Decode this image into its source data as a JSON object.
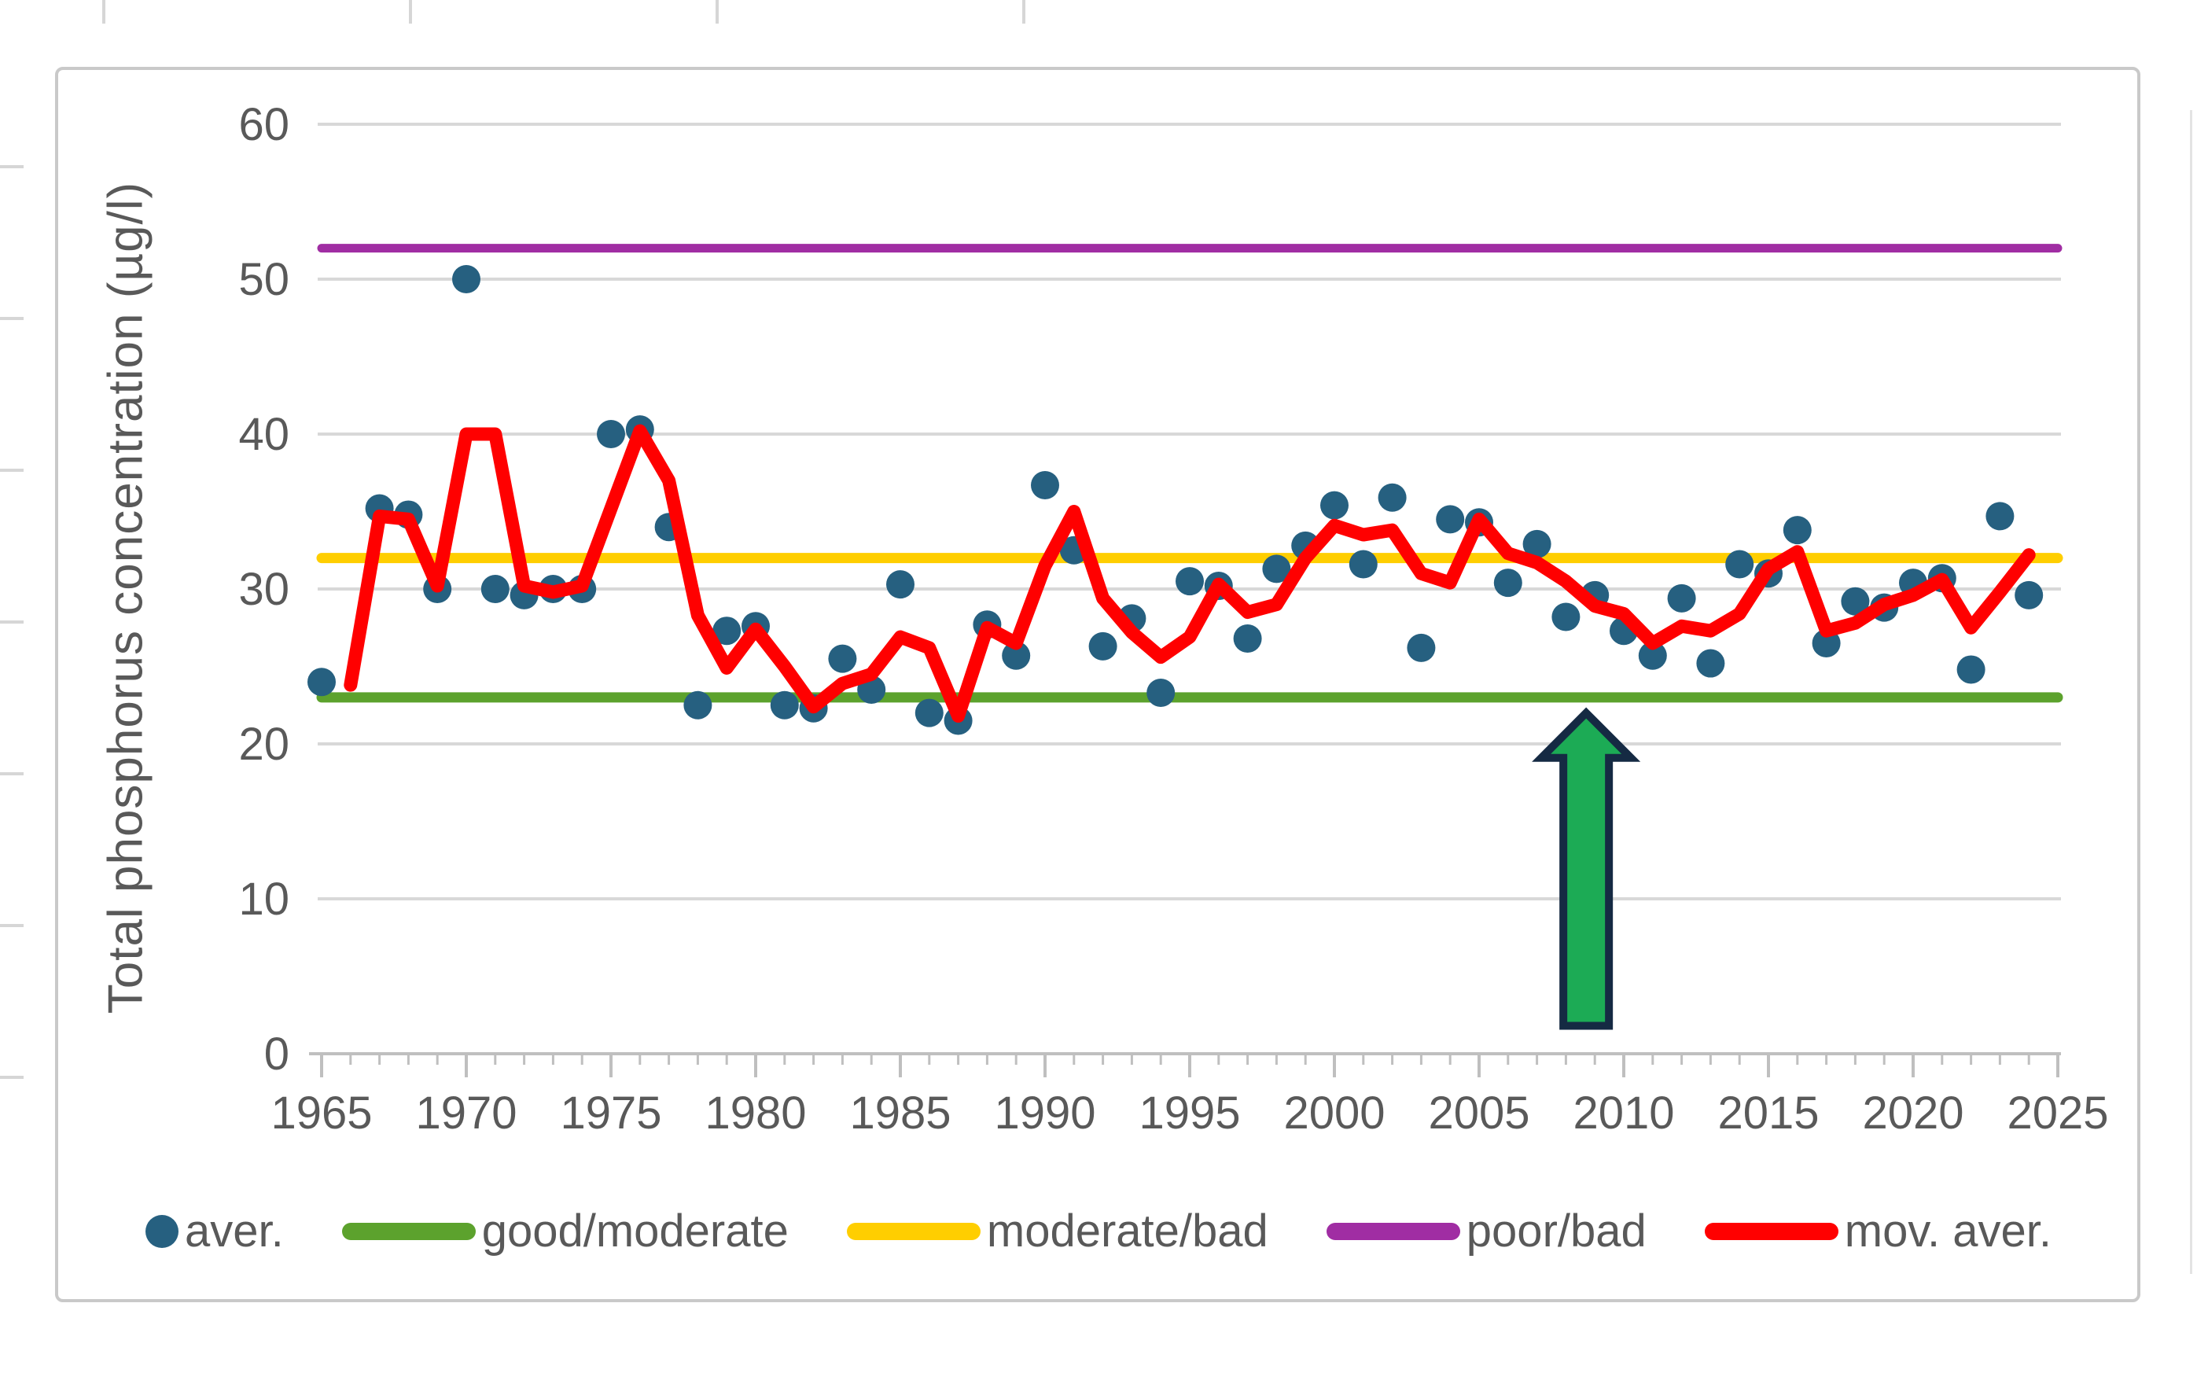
{
  "chart_data": {
    "type": "scatter",
    "title": "",
    "xlabel": "",
    "ylabel": "Total phosphorus concentration (µg/l)",
    "xlim": [
      1965,
      2025
    ],
    "ylim": [
      0,
      60
    ],
    "x_ticks": [
      1965,
      1970,
      1975,
      1980,
      1985,
      1990,
      1995,
      2000,
      2005,
      2010,
      2015,
      2020,
      2025
    ],
    "y_ticks": [
      0,
      10,
      20,
      30,
      40,
      50,
      60
    ],
    "grid": "horizontal",
    "legend_position": "bottom",
    "colors": {
      "gridline": "#d8d8d8",
      "axis": "#bfbfbf",
      "tick_text": "#595959"
    },
    "series": [
      {
        "name": "aver.",
        "type": "scatter",
        "color": "#266080",
        "points": [
          [
            1965,
            24
          ],
          [
            1967,
            35.2
          ],
          [
            1968,
            34.8
          ],
          [
            1969,
            30
          ],
          [
            1970,
            50
          ],
          [
            1971,
            30
          ],
          [
            1972,
            29.6
          ],
          [
            1973,
            30
          ],
          [
            1974,
            30
          ],
          [
            1975,
            40
          ],
          [
            1976,
            40.3
          ],
          [
            1977,
            34
          ],
          [
            1978,
            22.5
          ],
          [
            1979,
            27.3
          ],
          [
            1980,
            27.6
          ],
          [
            1981,
            22.5
          ],
          [
            1982,
            22.3
          ],
          [
            1983,
            25.5
          ],
          [
            1984,
            23.5
          ],
          [
            1985,
            30.3
          ],
          [
            1986,
            22
          ],
          [
            1987,
            21.5
          ],
          [
            1988,
            27.7
          ],
          [
            1989,
            25.7
          ],
          [
            1990,
            36.7
          ],
          [
            1991,
            32.5
          ],
          [
            1992,
            26.3
          ],
          [
            1993,
            28.1
          ],
          [
            1994,
            23.3
          ],
          [
            1995,
            30.5
          ],
          [
            1996,
            30.2
          ],
          [
            1997,
            26.8
          ],
          [
            1998,
            31.3
          ],
          [
            1999,
            32.8
          ],
          [
            2000,
            35.4
          ],
          [
            2001,
            31.6
          ],
          [
            2002,
            35.9
          ],
          [
            2003,
            26.2
          ],
          [
            2004,
            34.5
          ],
          [
            2005,
            34.3
          ],
          [
            2006,
            30.4
          ],
          [
            2007,
            32.9
          ],
          [
            2008,
            28.2
          ],
          [
            2009,
            29.6
          ],
          [
            2010,
            27.3
          ],
          [
            2011,
            25.7
          ],
          [
            2012,
            29.4
          ],
          [
            2013,
            25.2
          ],
          [
            2014,
            31.6
          ],
          [
            2015,
            31
          ],
          [
            2016,
            33.8
          ],
          [
            2017,
            26.5
          ],
          [
            2018,
            29.2
          ],
          [
            2019,
            28.8
          ],
          [
            2020,
            30.4
          ],
          [
            2021,
            30.7
          ],
          [
            2022,
            24.8
          ],
          [
            2023,
            34.7
          ],
          [
            2024,
            29.6
          ]
        ]
      },
      {
        "name": "good/moderate",
        "type": "hline",
        "color": "#5CA22D",
        "value": 23
      },
      {
        "name": "moderate/bad",
        "type": "hline",
        "color": "#FFCE00",
        "value": 32
      },
      {
        "name": "poor/bad",
        "type": "hline",
        "color": "#A02DA3",
        "value": 52
      },
      {
        "name": "mov. aver.",
        "type": "line",
        "color": "#FF0000",
        "points": [
          [
            1966,
            23.8
          ],
          [
            1967,
            34.7
          ],
          [
            1968,
            34.5
          ],
          [
            1969,
            30.2
          ],
          [
            1970,
            40
          ],
          [
            1971,
            40
          ],
          [
            1972,
            30.2
          ],
          [
            1973,
            29.8
          ],
          [
            1974,
            30.2
          ],
          [
            1975,
            35.2
          ],
          [
            1976,
            40.2
          ],
          [
            1977,
            37
          ],
          [
            1978,
            28.3
          ],
          [
            1979,
            24.9
          ],
          [
            1980,
            27.4
          ],
          [
            1981,
            25
          ],
          [
            1982,
            22.4
          ],
          [
            1983,
            23.9
          ],
          [
            1984,
            24.5
          ],
          [
            1985,
            26.9
          ],
          [
            1986,
            26.2
          ],
          [
            1987,
            21.8
          ],
          [
            1988,
            27.5
          ],
          [
            1989,
            26.5
          ],
          [
            1990,
            31.5
          ],
          [
            1991,
            35
          ],
          [
            1992,
            29.4
          ],
          [
            1993,
            27.2
          ],
          [
            1994,
            25.6
          ],
          [
            1995,
            26.9
          ],
          [
            1996,
            30.3
          ],
          [
            1997,
            28.5
          ],
          [
            1998,
            29
          ],
          [
            1999,
            32
          ],
          [
            2000,
            34.1
          ],
          [
            2001,
            33.5
          ],
          [
            2002,
            33.8
          ],
          [
            2003,
            31
          ],
          [
            2004,
            30.4
          ],
          [
            2005,
            34.5
          ],
          [
            2006,
            32.3
          ],
          [
            2007,
            31.7
          ],
          [
            2008,
            30.5
          ],
          [
            2009,
            28.9
          ],
          [
            2010,
            28.4
          ],
          [
            2011,
            26.5
          ],
          [
            2012,
            27.6
          ],
          [
            2013,
            27.3
          ],
          [
            2014,
            28.4
          ],
          [
            2015,
            31.3
          ],
          [
            2016,
            32.4
          ],
          [
            2017,
            27.3
          ],
          [
            2018,
            27.8
          ],
          [
            2019,
            29
          ],
          [
            2020,
            29.6
          ],
          [
            2021,
            30.6
          ],
          [
            2022,
            27.5
          ],
          [
            2023,
            29.8
          ],
          [
            2024,
            32.2
          ]
        ]
      }
    ],
    "annotations": [
      {
        "type": "arrow-up",
        "x": 2008.7,
        "y_from": 1.8,
        "y_to": 22,
        "fill": "#1CAB55",
        "outline": "#152A43"
      }
    ]
  }
}
